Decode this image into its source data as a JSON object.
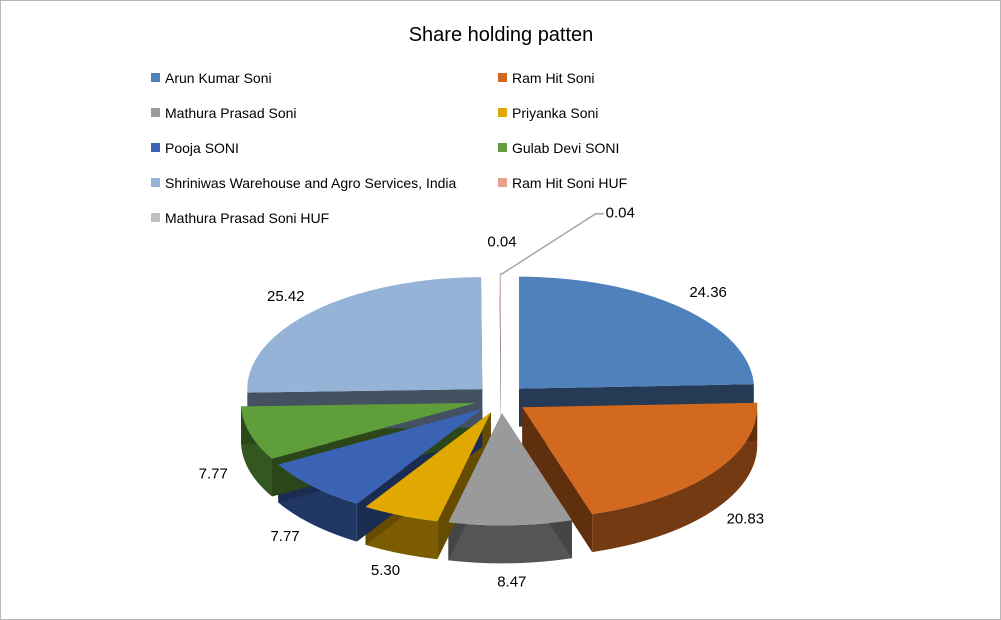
{
  "chart_data": {
    "type": "pie",
    "style": "3d-exploded",
    "title": "Share holding patten",
    "legend_position": "top",
    "slices": [
      {
        "label": "Arun Kumar Soni",
        "value": 24.36,
        "value_text": "24.36",
        "color": "#4F81BD"
      },
      {
        "label": "Ram Hit Soni",
        "value": 20.83,
        "value_text": "20.83",
        "color": "#D2691E"
      },
      {
        "label": "Mathura Prasad Soni",
        "value": 8.47,
        "value_text": "8.47",
        "color": "#9A9A9A"
      },
      {
        "label": "Priyanka Soni",
        "value": 5.3,
        "value_text": "5.30",
        "color": "#E0A800"
      },
      {
        "label": "Pooja SONI",
        "value": 7.77,
        "value_text": "7.77",
        "color": "#3A62B5"
      },
      {
        "label": "Gulab Devi SONI",
        "value": 7.77,
        "value_text": "7.77",
        "color": "#5F9E3A"
      },
      {
        "label": "Shriniwas Warehouse and Agro Services, India",
        "value": 25.42,
        "value_text": "25.42",
        "color": "#95B3D7"
      },
      {
        "label": "Ram Hit Soni HUF",
        "value": 0.04,
        "value_text": "0.04",
        "color": "#E8A090"
      },
      {
        "label": "Mathura Prasad Soni HUF",
        "value": 0.04,
        "value_text": "0.04",
        "color": "#BFBFBF"
      }
    ]
  }
}
